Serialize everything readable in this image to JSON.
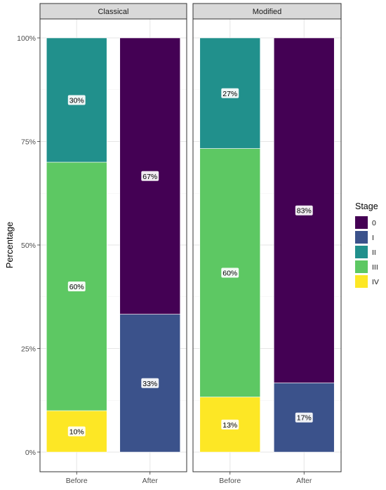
{
  "chart_data": {
    "type": "bar",
    "stacked": true,
    "ylabel": "Percentage",
    "xlabel": "",
    "ylim": [
      0,
      100
    ],
    "y_ticks": [
      "0%",
      "25%",
      "50%",
      "75%",
      "100%"
    ],
    "grid": true,
    "legend": {
      "title": "Stage",
      "placement": "right",
      "entries": [
        {
          "name": "0",
          "color": "#440154"
        },
        {
          "name": "I",
          "color": "#3B528B"
        },
        {
          "name": "II",
          "color": "#21908C"
        },
        {
          "name": "III",
          "color": "#5DC863"
        },
        {
          "name": "IV",
          "color": "#FDE725"
        }
      ]
    },
    "panels": [
      {
        "title": "Classical",
        "categories": [
          "Before",
          "After"
        ],
        "bars": [
          {
            "category": "Before",
            "segments": [
              {
                "stage": "IV",
                "value": 10,
                "label": "10%"
              },
              {
                "stage": "III",
                "value": 60,
                "label": "60%"
              },
              {
                "stage": "II",
                "value": 30,
                "label": "30%"
              }
            ]
          },
          {
            "category": "After",
            "segments": [
              {
                "stage": "I",
                "value": 33.3,
                "label": "33%"
              },
              {
                "stage": "0",
                "value": 66.7,
                "label": "67%"
              }
            ]
          }
        ]
      },
      {
        "title": "Modified",
        "categories": [
          "Before",
          "After"
        ],
        "bars": [
          {
            "category": "Before",
            "segments": [
              {
                "stage": "IV",
                "value": 13.3,
                "label": "13%"
              },
              {
                "stage": "III",
                "value": 60,
                "label": "60%"
              },
              {
                "stage": "II",
                "value": 26.7,
                "label": "27%"
              }
            ]
          },
          {
            "category": "After",
            "segments": [
              {
                "stage": "I",
                "value": 16.7,
                "label": "17%"
              },
              {
                "stage": "0",
                "value": 83.3,
                "label": "83%"
              }
            ]
          }
        ]
      }
    ]
  }
}
